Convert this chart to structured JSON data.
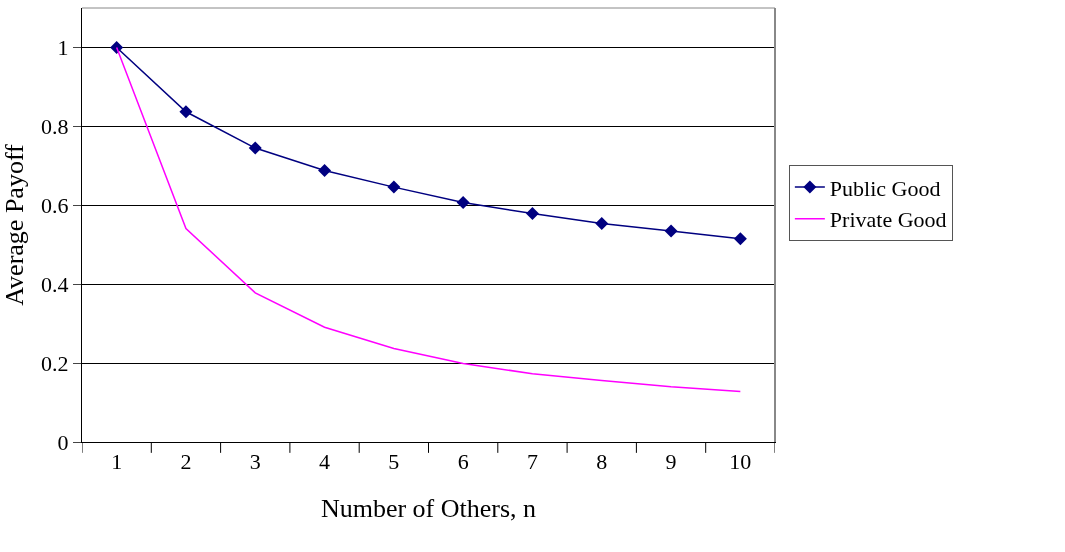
{
  "chart_data": {
    "type": "line",
    "xlabel": "Number of Others, n",
    "ylabel": "Average Payoff",
    "categories": [
      "1",
      "2",
      "3",
      "4",
      "5",
      "6",
      "7",
      "8",
      "9",
      "10"
    ],
    "series": [
      {
        "name": "Public Good",
        "color": "#000080",
        "marker": "diamond",
        "values": [
          1,
          0.837,
          0.745,
          0.688,
          0.646,
          0.607,
          0.579,
          0.554,
          0.535,
          0.515
        ]
      },
      {
        "name": "Private Good",
        "color": "#ff00ff",
        "marker": "none",
        "values": [
          1,
          0.541,
          0.378,
          0.291,
          0.237,
          0.199,
          0.173,
          0.156,
          0.14,
          0.128
        ]
      }
    ],
    "ylim": [
      0,
      1.1
    ],
    "yticks": [
      0,
      0.2,
      0.4,
      0.6,
      0.8,
      1
    ],
    "grid": "y",
    "legend": "right"
  }
}
